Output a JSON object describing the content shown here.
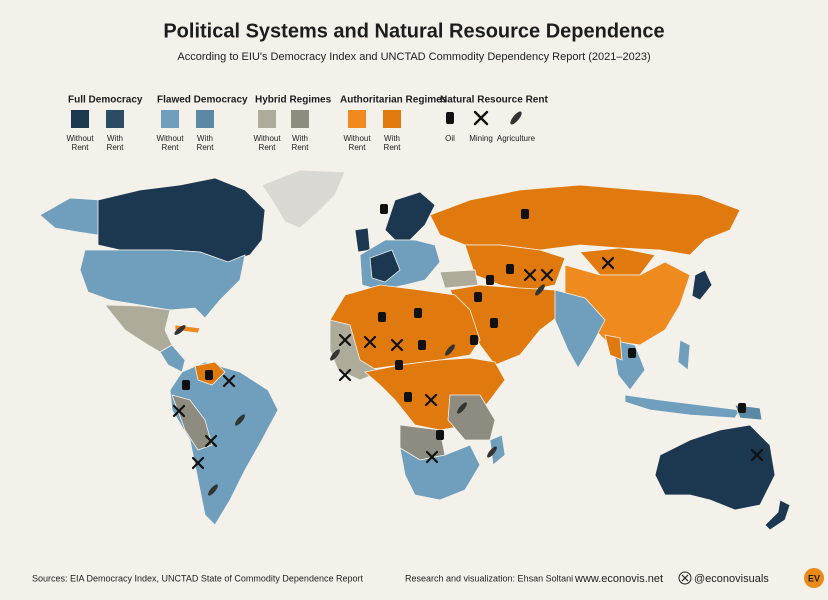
{
  "header": {
    "title": "Political Systems and Natural Resource Dependence",
    "subtitle": "According to EIU's Democracy Index and UNCTAD Commodity Dependency Report (2021–2023)"
  },
  "legend": {
    "groups": [
      {
        "title": "Full Democracy",
        "items": [
          {
            "label": [
              "Without",
              "Rent"
            ],
            "color": "#1c3850"
          },
          {
            "label": [
              "With",
              "Rent"
            ],
            "color": "#2a4d63"
          }
        ]
      },
      {
        "title": "Flawed Democracy",
        "items": [
          {
            "label": [
              "Without",
              "Rent"
            ],
            "color": "#6f9fbc"
          },
          {
            "label": [
              "With",
              "Rent"
            ],
            "color": "#5b89a4"
          }
        ]
      },
      {
        "title": "Hybrid Regimes",
        "items": [
          {
            "label": [
              "Without",
              "Rent"
            ],
            "color": "#aeab9b"
          },
          {
            "label": [
              "With",
              "Rent"
            ],
            "color": "#8e8c80"
          }
        ]
      },
      {
        "title": "Authoritarian Regimes",
        "items": [
          {
            "label": [
              "Without",
              "Rent"
            ],
            "color": "#ef8a1e"
          },
          {
            "label": [
              "With",
              "Rent"
            ],
            "color": "#e07a0f"
          }
        ]
      }
    ],
    "resources": {
      "title": "Natural Resource Rent",
      "items": [
        "Oil",
        "Mining",
        "Agriculture"
      ]
    }
  },
  "footer": {
    "sources": "Sources:  EIA Democracy Index, UNCTAD State of Commodity Dependence Report",
    "credit": "Research and visualization: Ehsan Soltani",
    "website": "www.econovis.net",
    "social": "@econovisuals",
    "logo": "EV"
  }
}
